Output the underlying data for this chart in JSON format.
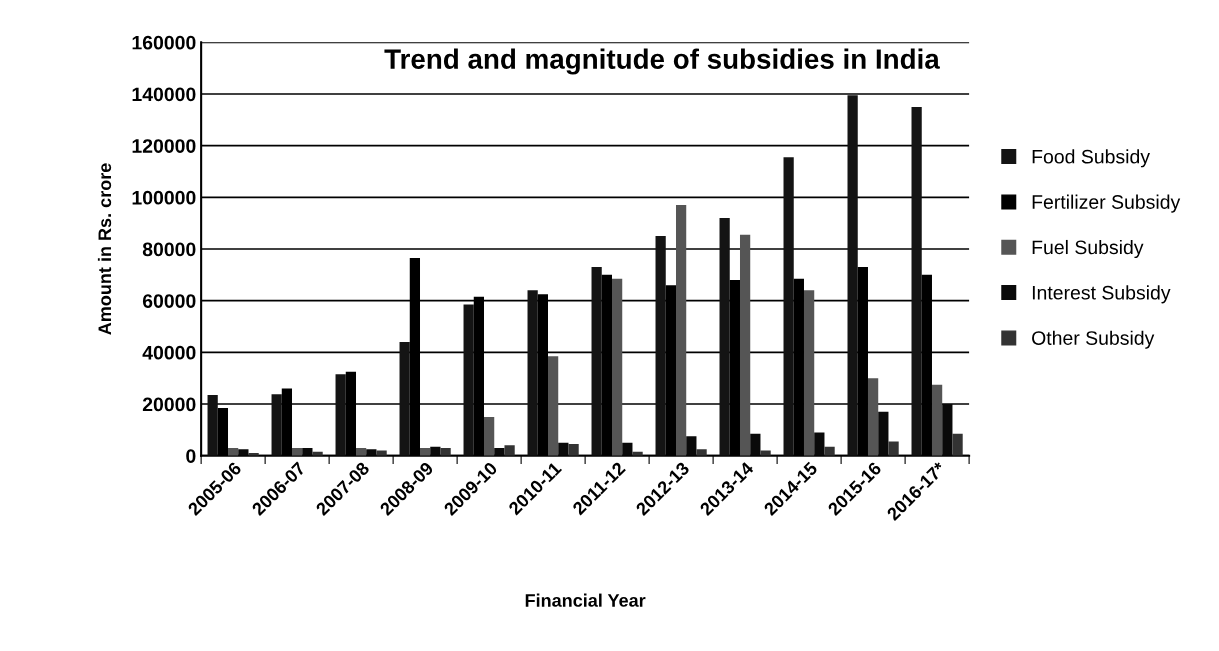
{
  "chart_data": {
    "type": "bar",
    "title": "Trend and magnitude of subsidies in India",
    "xlabel": "Financial Year",
    "ylabel": "Amount in Rs. crore",
    "categories": [
      "2005-06",
      "2006-07",
      "2007-08",
      "2008-09",
      "2009-10",
      "2010-11",
      "2011-12",
      "2012-13",
      "2013-14",
      "2014-15",
      "2015-16",
      "2016-17*"
    ],
    "series": [
      {
        "name": "Food Subsidy",
        "color": "#141414",
        "values": [
          23500,
          23800,
          31500,
          44000,
          58500,
          64000,
          73000,
          85000,
          92000,
          115500,
          139500,
          135000
        ]
      },
      {
        "name": "Fertilizer Subsidy",
        "color": "#000000",
        "values": [
          18500,
          26000,
          32500,
          76500,
          61500,
          62500,
          70000,
          66000,
          68000,
          68500,
          73000,
          70000
        ]
      },
      {
        "name": "Fuel Subsidy",
        "color": "#555555",
        "values": [
          3000,
          3000,
          3000,
          3000,
          15000,
          38500,
          68500,
          97000,
          85500,
          64000,
          30000,
          27500
        ]
      },
      {
        "name": "Interest Subsidy",
        "color": "#0a0a0a",
        "values": [
          2500,
          3000,
          2500,
          3500,
          3000,
          5000,
          5000,
          7500,
          8500,
          9000,
          17000,
          20000
        ]
      },
      {
        "name": "Other Subsidy",
        "color": "#333333",
        "values": [
          1000,
          1500,
          2000,
          3000,
          4000,
          4500,
          1500,
          2500,
          2000,
          3500,
          5500,
          8500
        ]
      }
    ],
    "ylim": [
      0,
      160000
    ],
    "yticks": [
      0,
      20000,
      40000,
      60000,
      80000,
      100000,
      120000,
      140000,
      160000
    ],
    "grid": "y",
    "legend": "right"
  }
}
